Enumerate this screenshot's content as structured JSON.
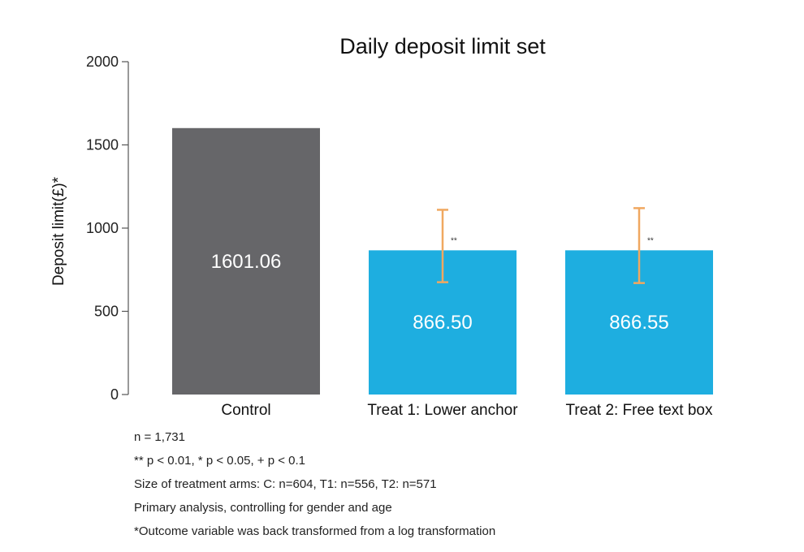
{
  "chart_data": {
    "type": "bar",
    "title": "Daily deposit limit set",
    "ylabel": "Deposit limit(£)*",
    "xlabel": "",
    "ylim": [
      0,
      2000
    ],
    "yticks": [
      0,
      500,
      1000,
      1500,
      2000
    ],
    "categories": [
      "Control",
      "Treat 1: Lower anchor",
      "Treat 2: Free text box"
    ],
    "values": [
      1601.06,
      866.5,
      866.55
    ],
    "value_labels": [
      "1601.06",
      "866.50",
      "866.55"
    ],
    "colors": [
      "#666669",
      "#1eaee0",
      "#1eaee0"
    ],
    "error_bars": [
      null,
      {
        "low": 675,
        "high": 1110
      },
      {
        "low": 670,
        "high": 1120
      }
    ],
    "error_bar_color": "#f0a860",
    "significance": [
      "",
      "**",
      "**"
    ],
    "grid": false
  },
  "notes": [
    "n = 1,731",
    "** p < 0.01, * p < 0.05, + p < 0.1",
    "Size of treatment arms: C: n=604, T1: n=556, T2: n=571",
    "Primary analysis, controlling for gender and age",
    "*Outcome variable was back transformed from a log transformation"
  ]
}
